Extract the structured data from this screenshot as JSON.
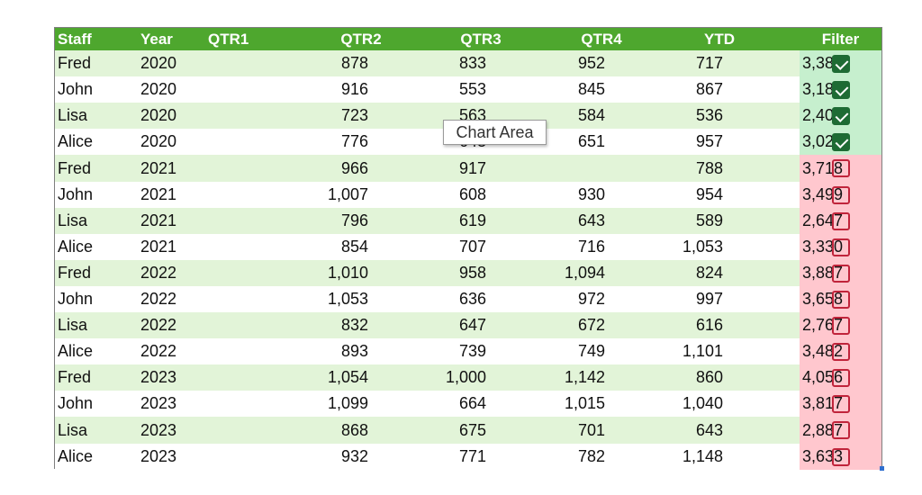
{
  "colors": {
    "header_bg": "#4ea72e",
    "band_green": "#e2f4d8",
    "band_white": "#ffffff",
    "filter_true_bg": "#c6efce",
    "filter_false_bg": "#ffc7ce",
    "check_green": "#1e6b34",
    "check_red": "#c0243b"
  },
  "table": {
    "headers": {
      "staff": "Staff",
      "year": "Year",
      "q1": "QTR1",
      "q2": "QTR2",
      "q3": "QTR3",
      "q4": "QTR4",
      "ytd": "YTD",
      "filter": "Filter"
    },
    "rows": [
      {
        "staff": "Fred",
        "year": "2020",
        "q1": "878",
        "q2": "833",
        "q3": "952",
        "q4": "717",
        "ytd": "3,380",
        "filter": true
      },
      {
        "staff": "John",
        "year": "2020",
        "q1": "916",
        "q2": "553",
        "q3": "845",
        "q4": "867",
        "ytd": "3,181",
        "filter": true
      },
      {
        "staff": "Lisa",
        "year": "2020",
        "q1": "723",
        "q2": "563",
        "q3": "584",
        "q4": "536",
        "ytd": "2,406",
        "filter": true
      },
      {
        "staff": "Alice",
        "year": "2020",
        "q1": "776",
        "q2": "643",
        "q3": "651",
        "q4": "957",
        "ytd": "3,028",
        "filter": true
      },
      {
        "staff": "Fred",
        "year": "2021",
        "q1": "966",
        "q2": "917",
        "q3": "",
        "q4": "788",
        "ytd": "3,718",
        "filter": false
      },
      {
        "staff": "John",
        "year": "2021",
        "q1": "1,007",
        "q2": "608",
        "q3": "930",
        "q4": "954",
        "ytd": "3,499",
        "filter": false
      },
      {
        "staff": "Lisa",
        "year": "2021",
        "q1": "796",
        "q2": "619",
        "q3": "643",
        "q4": "589",
        "ytd": "2,647",
        "filter": false
      },
      {
        "staff": "Alice",
        "year": "2021",
        "q1": "854",
        "q2": "707",
        "q3": "716",
        "q4": "1,053",
        "ytd": "3,330",
        "filter": false
      },
      {
        "staff": "Fred",
        "year": "2022",
        "q1": "1,010",
        "q2": "958",
        "q3": "1,094",
        "q4": "824",
        "ytd": "3,887",
        "filter": false
      },
      {
        "staff": "John",
        "year": "2022",
        "q1": "1,053",
        "q2": "636",
        "q3": "972",
        "q4": "997",
        "ytd": "3,658",
        "filter": false
      },
      {
        "staff": "Lisa",
        "year": "2022",
        "q1": "832",
        "q2": "647",
        "q3": "672",
        "q4": "616",
        "ytd": "2,767",
        "filter": false
      },
      {
        "staff": "Alice",
        "year": "2022",
        "q1": "893",
        "q2": "739",
        "q3": "749",
        "q4": "1,101",
        "ytd": "3,482",
        "filter": false
      },
      {
        "staff": "Fred",
        "year": "2023",
        "q1": "1,054",
        "q2": "1,000",
        "q3": "1,142",
        "q4": "860",
        "ytd": "4,056",
        "filter": false
      },
      {
        "staff": "John",
        "year": "2023",
        "q1": "1,099",
        "q2": "664",
        "q3": "1,015",
        "q4": "1,040",
        "ytd": "3,817",
        "filter": false
      },
      {
        "staff": "Lisa",
        "year": "2023",
        "q1": "868",
        "q2": "675",
        "q3": "701",
        "q4": "643",
        "ytd": "2,887",
        "filter": false
      },
      {
        "staff": "Alice",
        "year": "2023",
        "q1": "932",
        "q2": "771",
        "q3": "782",
        "q4": "1,148",
        "ytd": "3,633",
        "filter": false
      }
    ]
  },
  "tooltip": {
    "text": "Chart Area"
  }
}
